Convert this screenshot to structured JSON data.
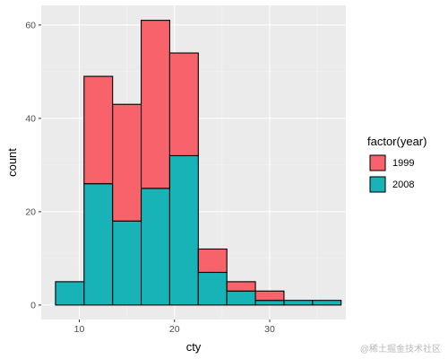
{
  "chart_data": {
    "type": "bar",
    "stacked": true,
    "histogram": true,
    "bins": [
      {
        "x0": 7.5,
        "x1": 10.5
      },
      {
        "x0": 10.5,
        "x1": 13.5
      },
      {
        "x0": 13.5,
        "x1": 16.5
      },
      {
        "x0": 16.5,
        "x1": 19.5
      },
      {
        "x0": 19.5,
        "x1": 22.5
      },
      {
        "x0": 22.5,
        "x1": 25.5
      },
      {
        "x0": 25.5,
        "x1": 28.5
      },
      {
        "x0": 28.5,
        "x1": 31.5
      },
      {
        "x0": 31.5,
        "x1": 34.5
      },
      {
        "x0": 34.5,
        "x1": 37.5
      }
    ],
    "series": [
      {
        "name": "2008",
        "color": "#17B3B7",
        "values": [
          5,
          26,
          18,
          25,
          32,
          7,
          3,
          1,
          1,
          1
        ]
      },
      {
        "name": "1999",
        "color": "#F8626A",
        "values": [
          0,
          23,
          25,
          36,
          22,
          5,
          2,
          2,
          0,
          0
        ]
      }
    ],
    "xlabel": "cty",
    "ylabel": "count",
    "xlim": [
      6,
      38
    ],
    "ylim": [
      -3.1,
      64.2
    ],
    "xticks": [
      10,
      20,
      30
    ],
    "yticks": [
      0,
      20,
      40,
      60
    ],
    "grid": true,
    "panel_background": "#EBEBEB",
    "legend": {
      "title": "factor(year)",
      "position": "right",
      "entries": [
        {
          "label": "1999",
          "color": "#F8626A"
        },
        {
          "label": "2008",
          "color": "#17B3B7"
        }
      ]
    }
  },
  "watermark": "@稀土掘金技术社区"
}
